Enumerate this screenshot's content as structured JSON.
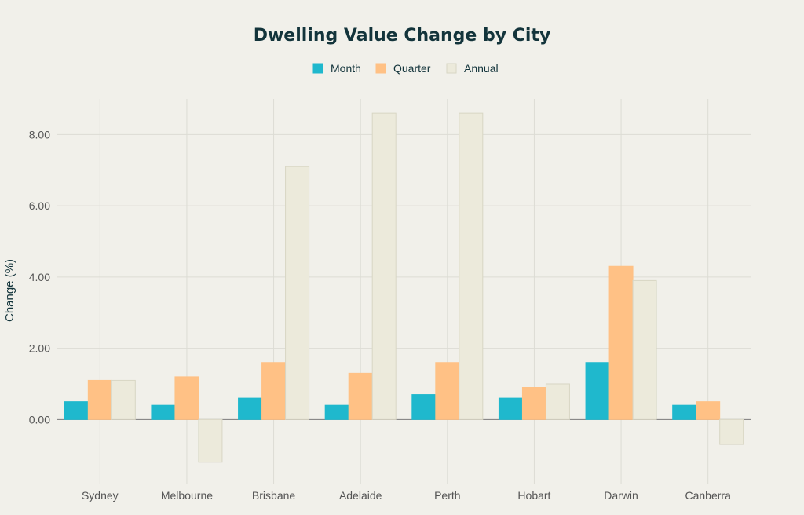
{
  "chart_data": {
    "type": "bar",
    "title": "Dwelling Value Change by City",
    "xlabel": "",
    "ylabel": "Change (%)",
    "categories": [
      "Sydney",
      "Melbourne",
      "Brisbane",
      "Adelaide",
      "Perth",
      "Hobart",
      "Darwin",
      "Canberra"
    ],
    "series": [
      {
        "name": "Month",
        "color": "#1fb8cd",
        "values": [
          0.5,
          0.4,
          0.6,
          0.4,
          0.7,
          0.6,
          1.6,
          0.4
        ]
      },
      {
        "name": "Quarter",
        "color": "#ffc185",
        "values": [
          1.1,
          1.2,
          1.6,
          1.3,
          1.6,
          0.9,
          4.3,
          0.5
        ]
      },
      {
        "name": "Annual",
        "color": "#eceadb",
        "values": [
          1.1,
          -1.2,
          7.1,
          8.6,
          8.6,
          1.0,
          3.9,
          -0.7
        ]
      }
    ],
    "ylim": [
      -1.8,
      9.0
    ],
    "yticks": [
      "0.00",
      "2.00",
      "4.00",
      "6.00",
      "8.00"
    ],
    "grid": true,
    "legend_position": "top-center"
  }
}
